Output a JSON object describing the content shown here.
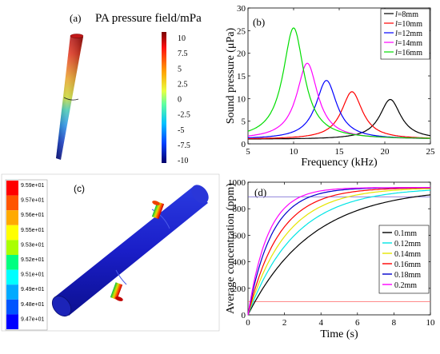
{
  "panels": {
    "a": {
      "label": "(a)",
      "title": "PA pressure field/mPa",
      "colorbar_ticks": [
        "10",
        "7.5",
        "5",
        "2.5",
        "0",
        "-2.5",
        "-5",
        "-7.5",
        "-10"
      ]
    },
    "c": {
      "label": "(c)",
      "legend_values": [
        "9.59e+01",
        "9.57e+01",
        "9.56e+01",
        "9.55e+01",
        "9.53e+01",
        "9.52e+01",
        "9.51e+01",
        "9.49e+01",
        "9.48e+01",
        "9.47e+01"
      ],
      "legend_colors": [
        "#ff0000",
        "#ff5500",
        "#ffaa00",
        "#ffff00",
        "#aaff00",
        "#00ff80",
        "#00ffff",
        "#00aaff",
        "#0055ff",
        "#0000ff"
      ]
    }
  },
  "chart_data": [
    {
      "id": "b",
      "label": "(b)",
      "type": "line",
      "xlabel": "Frequency (kHz)",
      "ylabel": "Sound pressure (μPa)",
      "xlim": [
        5,
        25
      ],
      "ylim": [
        0,
        30
      ],
      "xticks": [
        5,
        10,
        15,
        20,
        25
      ],
      "yticks": [
        0,
        5,
        10,
        15,
        20,
        25,
        30
      ],
      "legend_position": "top-right",
      "series": [
        {
          "name": "l=8mm",
          "label_pre": "l",
          "label_post": "=8mm",
          "color": "#000000",
          "peak_x": 20.6,
          "peak_y": 9.8,
          "base_y": 1.0
        },
        {
          "name": "l=10mm",
          "label_pre": "l",
          "label_post": "=10mm",
          "color": "#ff0000",
          "peak_x": 16.4,
          "peak_y": 11.5,
          "base_y": 1.0
        },
        {
          "name": "l=12mm",
          "label_pre": "l",
          "label_post": "=12mm",
          "color": "#0000ff",
          "peak_x": 13.6,
          "peak_y": 14.0,
          "base_y": 1.0
        },
        {
          "name": "l=14mm",
          "label_pre": "l",
          "label_post": "=14mm",
          "color": "#ff00ff",
          "peak_x": 11.5,
          "peak_y": 17.8,
          "base_y": 1.0
        },
        {
          "name": "l=16mm",
          "label_pre": "l",
          "label_post": "=16mm",
          "color": "#00dd00",
          "peak_x": 10.0,
          "peak_y": 25.6,
          "base_y": 1.0
        }
      ]
    },
    {
      "id": "d",
      "label": "(d)",
      "type": "line",
      "xlabel": "Time (s)",
      "ylabel": "Average concentration (ppm)",
      "xlim": [
        0,
        10
      ],
      "ylim": [
        0,
        1000
      ],
      "xticks": [
        0,
        2,
        4,
        6,
        8,
        10
      ],
      "yticks": [
        0,
        200,
        400,
        600,
        800,
        1000
      ],
      "legend_position": "center-right",
      "reference_lines": [
        {
          "y": 890,
          "color": "#6a5acd"
        },
        {
          "y": 100,
          "color": "#ff6666"
        }
      ],
      "series": [
        {
          "name": "0.1mm",
          "color": "#000000",
          "final": 960,
          "tau": 3.5
        },
        {
          "name": "0.12mm",
          "color": "#00e5e5",
          "final": 960,
          "tau": 2.6
        },
        {
          "name": "0.14mm",
          "color": "#e5e500",
          "final": 960,
          "tau": 2.1
        },
        {
          "name": "0.16mm",
          "color": "#ff0000",
          "final": 960,
          "tau": 1.7
        },
        {
          "name": "0.18mm",
          "color": "#0000cc",
          "final": 960,
          "tau": 1.3
        },
        {
          "name": "0.2mm",
          "color": "#ff00ff",
          "final": 960,
          "tau": 1.1
        }
      ]
    }
  ]
}
